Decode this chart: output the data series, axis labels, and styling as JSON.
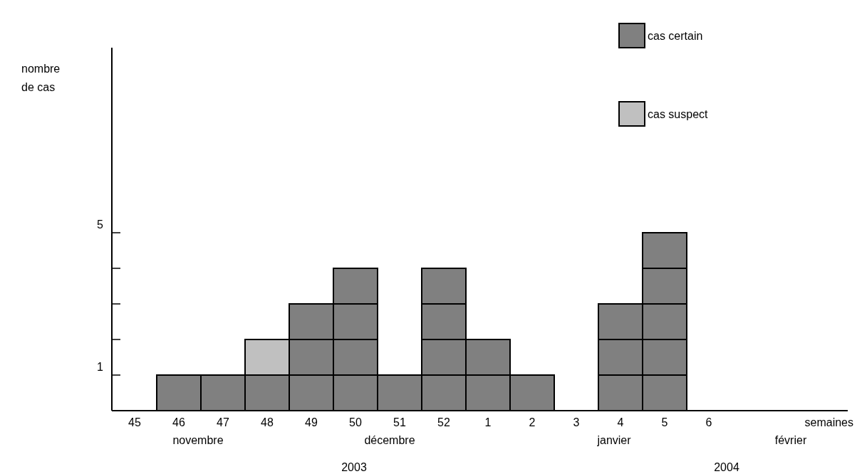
{
  "chart_data": {
    "type": "bar",
    "stacked": true,
    "ylabel": "nombre\nde cas",
    "categories": [
      "45",
      "46",
      "47",
      "48",
      "49",
      "50",
      "51",
      "52",
      "1",
      "2",
      "3",
      "4",
      "5",
      "6"
    ],
    "series": [
      {
        "name": "cas certain",
        "color": "#808080",
        "values": [
          0,
          1,
          1,
          1,
          3,
          4,
          1,
          4,
          2,
          1,
          0,
          3,
          5,
          0
        ]
      },
      {
        "name": "cas suspect",
        "color": "#c0c0c0",
        "values": [
          0,
          0,
          0,
          1,
          0,
          0,
          0,
          0,
          0,
          0,
          0,
          0,
          0,
          0
        ]
      }
    ],
    "ylim": [
      0,
      10.2
    ],
    "yticks": [
      {
        "value": 1,
        "label": "1"
      },
      {
        "value": 2,
        "label": null
      },
      {
        "value": 3,
        "label": null
      },
      {
        "value": 4,
        "label": null
      },
      {
        "value": 5,
        "label": "5"
      }
    ],
    "annotations": [
      "novembre",
      "décembre",
      "janvier",
      "février",
      "2003",
      "2004",
      "semaines"
    ],
    "legend": "top right",
    "grid": false
  }
}
